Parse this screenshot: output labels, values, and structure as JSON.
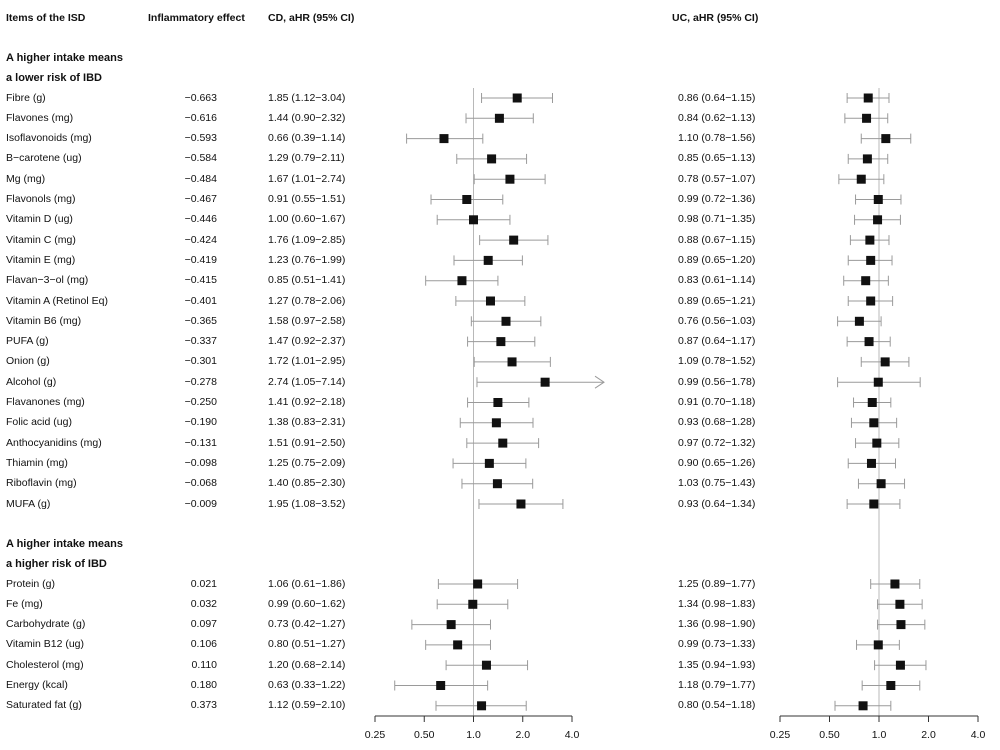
{
  "headers": {
    "items": "Items of the ISD",
    "effect": "Inflammatory effect",
    "cd": "CD, aHR (95% CI)",
    "uc": "UC, aHR (95% CI)"
  },
  "sections": [
    {
      "line1": "A higher intake means",
      "line2": "a lower risk of IBD"
    },
    {
      "line1": "A higher intake means",
      "line2": "a higher risk of IBD"
    }
  ],
  "chart_data": {
    "type": "forest",
    "x_scale": "log2",
    "xlim": [
      0.25,
      4.0
    ],
    "x_ticks": [
      "0.25",
      "0.50",
      "1.0",
      "2.0",
      "4.0"
    ],
    "reference_line": 1.0,
    "panels": [
      "CD",
      "UC"
    ],
    "groups": [
      {
        "section": 0,
        "rows": [
          {
            "item": "Fibre (g)",
            "effect": "−0.663",
            "cd": {
              "hr": 1.85,
              "lo": 1.12,
              "hi": 3.04,
              "label": "1.85 (1.12−3.04)"
            },
            "uc": {
              "hr": 0.86,
              "lo": 0.64,
              "hi": 1.15,
              "label": "0.86 (0.64−1.15)"
            }
          },
          {
            "item": "Flavones (mg)",
            "effect": "−0.616",
            "cd": {
              "hr": 1.44,
              "lo": 0.9,
              "hi": 2.32,
              "label": "1.44 (0.90−2.32)"
            },
            "uc": {
              "hr": 0.84,
              "lo": 0.62,
              "hi": 1.13,
              "label": "0.84 (0.62−1.13)"
            }
          },
          {
            "item": "Isoflavonoids (mg)",
            "effect": "−0.593",
            "cd": {
              "hr": 0.66,
              "lo": 0.39,
              "hi": 1.14,
              "label": "0.66 (0.39−1.14)"
            },
            "uc": {
              "hr": 1.1,
              "lo": 0.78,
              "hi": 1.56,
              "label": "1.10 (0.78−1.56)"
            }
          },
          {
            "item": "B−carotene (ug)",
            "effect": "−0.584",
            "cd": {
              "hr": 1.29,
              "lo": 0.79,
              "hi": 2.11,
              "label": "1.29 (0.79−2.11)"
            },
            "uc": {
              "hr": 0.85,
              "lo": 0.65,
              "hi": 1.13,
              "label": "0.85 (0.65−1.13)"
            }
          },
          {
            "item": "Mg (mg)",
            "effect": "−0.484",
            "cd": {
              "hr": 1.67,
              "lo": 1.01,
              "hi": 2.74,
              "label": "1.67 (1.01−2.74)"
            },
            "uc": {
              "hr": 0.78,
              "lo": 0.57,
              "hi": 1.07,
              "label": "0.78 (0.57−1.07)"
            }
          },
          {
            "item": "Flavonols (mg)",
            "effect": "−0.467",
            "cd": {
              "hr": 0.91,
              "lo": 0.55,
              "hi": 1.51,
              "label": "0.91 (0.55−1.51)"
            },
            "uc": {
              "hr": 0.99,
              "lo": 0.72,
              "hi": 1.36,
              "label": "0.99 (0.72−1.36)"
            }
          },
          {
            "item": "Vitamin D (ug)",
            "effect": "−0.446",
            "cd": {
              "hr": 1.0,
              "lo": 0.6,
              "hi": 1.67,
              "label": "1.00 (0.60−1.67)"
            },
            "uc": {
              "hr": 0.98,
              "lo": 0.71,
              "hi": 1.35,
              "label": "0.98 (0.71−1.35)"
            }
          },
          {
            "item": "Vitamin C (mg)",
            "effect": "−0.424",
            "cd": {
              "hr": 1.76,
              "lo": 1.09,
              "hi": 2.85,
              "label": "1.76 (1.09−2.85)"
            },
            "uc": {
              "hr": 0.88,
              "lo": 0.67,
              "hi": 1.15,
              "label": "0.88 (0.67−1.15)"
            }
          },
          {
            "item": "Vitamin E (mg)",
            "effect": "−0.419",
            "cd": {
              "hr": 1.23,
              "lo": 0.76,
              "hi": 1.99,
              "label": "1.23 (0.76−1.99)"
            },
            "uc": {
              "hr": 0.89,
              "lo": 0.65,
              "hi": 1.2,
              "label": "0.89 (0.65−1.20)"
            }
          },
          {
            "item": "Flavan−3−ol (mg)",
            "effect": "−0.415",
            "cd": {
              "hr": 0.85,
              "lo": 0.51,
              "hi": 1.41,
              "label": "0.85 (0.51−1.41)"
            },
            "uc": {
              "hr": 0.83,
              "lo": 0.61,
              "hi": 1.14,
              "label": "0.83 (0.61−1.14)"
            }
          },
          {
            "item": "Vitamin A (Retinol Eq)",
            "effect": "−0.401",
            "cd": {
              "hr": 1.27,
              "lo": 0.78,
              "hi": 2.06,
              "label": "1.27 (0.78−2.06)"
            },
            "uc": {
              "hr": 0.89,
              "lo": 0.65,
              "hi": 1.21,
              "label": "0.89 (0.65−1.21)"
            }
          },
          {
            "item": "Vitamin B6 (mg)",
            "effect": "−0.365",
            "cd": {
              "hr": 1.58,
              "lo": 0.97,
              "hi": 2.58,
              "label": "1.58 (0.97−2.58)"
            },
            "uc": {
              "hr": 0.76,
              "lo": 0.56,
              "hi": 1.03,
              "label": "0.76 (0.56−1.03)"
            }
          },
          {
            "item": "PUFA (g)",
            "effect": "−0.337",
            "cd": {
              "hr": 1.47,
              "lo": 0.92,
              "hi": 2.37,
              "label": "1.47 (0.92−2.37)"
            },
            "uc": {
              "hr": 0.87,
              "lo": 0.64,
              "hi": 1.17,
              "label": "0.87 (0.64−1.17)"
            }
          },
          {
            "item": "Onion (g)",
            "effect": "−0.301",
            "cd": {
              "hr": 1.72,
              "lo": 1.01,
              "hi": 2.95,
              "label": "1.72 (1.01−2.95)"
            },
            "uc": {
              "hr": 1.09,
              "lo": 0.78,
              "hi": 1.52,
              "label": "1.09 (0.78−1.52)"
            }
          },
          {
            "item": "Alcohol (g)",
            "effect": "−0.278",
            "cd": {
              "hr": 2.74,
              "lo": 1.05,
              "hi": 7.14,
              "label": "2.74 (1.05−7.14)"
            },
            "uc": {
              "hr": 0.99,
              "lo": 0.56,
              "hi": 1.78,
              "label": "0.99 (0.56−1.78)"
            }
          },
          {
            "item": "Flavanones (mg)",
            "effect": "−0.250",
            "cd": {
              "hr": 1.41,
              "lo": 0.92,
              "hi": 2.18,
              "label": "1.41 (0.92−2.18)"
            },
            "uc": {
              "hr": 0.91,
              "lo": 0.7,
              "hi": 1.18,
              "label": "0.91 (0.70−1.18)"
            }
          },
          {
            "item": "Folic acid (ug)",
            "effect": "−0.190",
            "cd": {
              "hr": 1.38,
              "lo": 0.83,
              "hi": 2.31,
              "label": "1.38 (0.83−2.31)"
            },
            "uc": {
              "hr": 0.93,
              "lo": 0.68,
              "hi": 1.28,
              "label": "0.93 (0.68−1.28)"
            }
          },
          {
            "item": "Anthocyanidins (mg)",
            "effect": "−0.131",
            "cd": {
              "hr": 1.51,
              "lo": 0.91,
              "hi": 2.5,
              "label": "1.51 (0.91−2.50)"
            },
            "uc": {
              "hr": 0.97,
              "lo": 0.72,
              "hi": 1.32,
              "label": "0.97 (0.72−1.32)"
            }
          },
          {
            "item": "Thiamin (mg)",
            "effect": "−0.098",
            "cd": {
              "hr": 1.25,
              "lo": 0.75,
              "hi": 2.09,
              "label": "1.25 (0.75−2.09)"
            },
            "uc": {
              "hr": 0.9,
              "lo": 0.65,
              "hi": 1.26,
              "label": "0.90 (0.65−1.26)"
            }
          },
          {
            "item": "Riboflavin (mg)",
            "effect": "−0.068",
            "cd": {
              "hr": 1.4,
              "lo": 0.85,
              "hi": 2.3,
              "label": "1.40 (0.85−2.30)"
            },
            "uc": {
              "hr": 1.03,
              "lo": 0.75,
              "hi": 1.43,
              "label": "1.03 (0.75−1.43)"
            }
          },
          {
            "item": "MUFA (g)",
            "effect": "−0.009",
            "cd": {
              "hr": 1.95,
              "lo": 1.08,
              "hi": 3.52,
              "label": "1.95 (1.08−3.52)"
            },
            "uc": {
              "hr": 0.93,
              "lo": 0.64,
              "hi": 1.34,
              "label": "0.93 (0.64−1.34)"
            }
          }
        ]
      },
      {
        "section": 1,
        "rows": [
          {
            "item": "Protein (g)",
            "effect": "0.021",
            "cd": {
              "hr": 1.06,
              "lo": 0.61,
              "hi": 1.86,
              "label": "1.06 (0.61−1.86)"
            },
            "uc": {
              "hr": 1.25,
              "lo": 0.89,
              "hi": 1.77,
              "label": "1.25 (0.89−1.77)"
            }
          },
          {
            "item": "Fe (mg)",
            "effect": "0.032",
            "cd": {
              "hr": 0.99,
              "lo": 0.6,
              "hi": 1.62,
              "label": "0.99 (0.60−1.62)"
            },
            "uc": {
              "hr": 1.34,
              "lo": 0.98,
              "hi": 1.83,
              "label": "1.34 (0.98−1.83)"
            }
          },
          {
            "item": "Carbohydrate (g)",
            "effect": "0.097",
            "cd": {
              "hr": 0.73,
              "lo": 0.42,
              "hi": 1.27,
              "label": "0.73 (0.42−1.27)"
            },
            "uc": {
              "hr": 1.36,
              "lo": 0.98,
              "hi": 1.9,
              "label": "1.36 (0.98−1.90)"
            }
          },
          {
            "item": "Vitamin B12 (ug)",
            "effect": "0.106",
            "cd": {
              "hr": 0.8,
              "lo": 0.51,
              "hi": 1.27,
              "label": "0.80 (0.51−1.27)"
            },
            "uc": {
              "hr": 0.99,
              "lo": 0.73,
              "hi": 1.33,
              "label": "0.99 (0.73−1.33)"
            }
          },
          {
            "item": "Cholesterol (mg)",
            "effect": "0.110",
            "cd": {
              "hr": 1.2,
              "lo": 0.68,
              "hi": 2.14,
              "label": "1.20 (0.68−2.14)"
            },
            "uc": {
              "hr": 1.35,
              "lo": 0.94,
              "hi": 1.93,
              "label": "1.35 (0.94−1.93)"
            }
          },
          {
            "item": "Energy (kcal)",
            "effect": "0.180",
            "cd": {
              "hr": 0.63,
              "lo": 0.33,
              "hi": 1.22,
              "label": "0.63 (0.33−1.22)"
            },
            "uc": {
              "hr": 1.18,
              "lo": 0.79,
              "hi": 1.77,
              "label": "1.18 (0.79−1.77)"
            }
          },
          {
            "item": "Saturated fat (g)",
            "effect": "0.373",
            "cd": {
              "hr": 1.12,
              "lo": 0.59,
              "hi": 2.1,
              "label": "1.12 (0.59−2.10)"
            },
            "uc": {
              "hr": 0.8,
              "lo": 0.54,
              "hi": 1.18,
              "label": "0.80 (0.54−1.18)"
            }
          }
        ]
      }
    ]
  }
}
